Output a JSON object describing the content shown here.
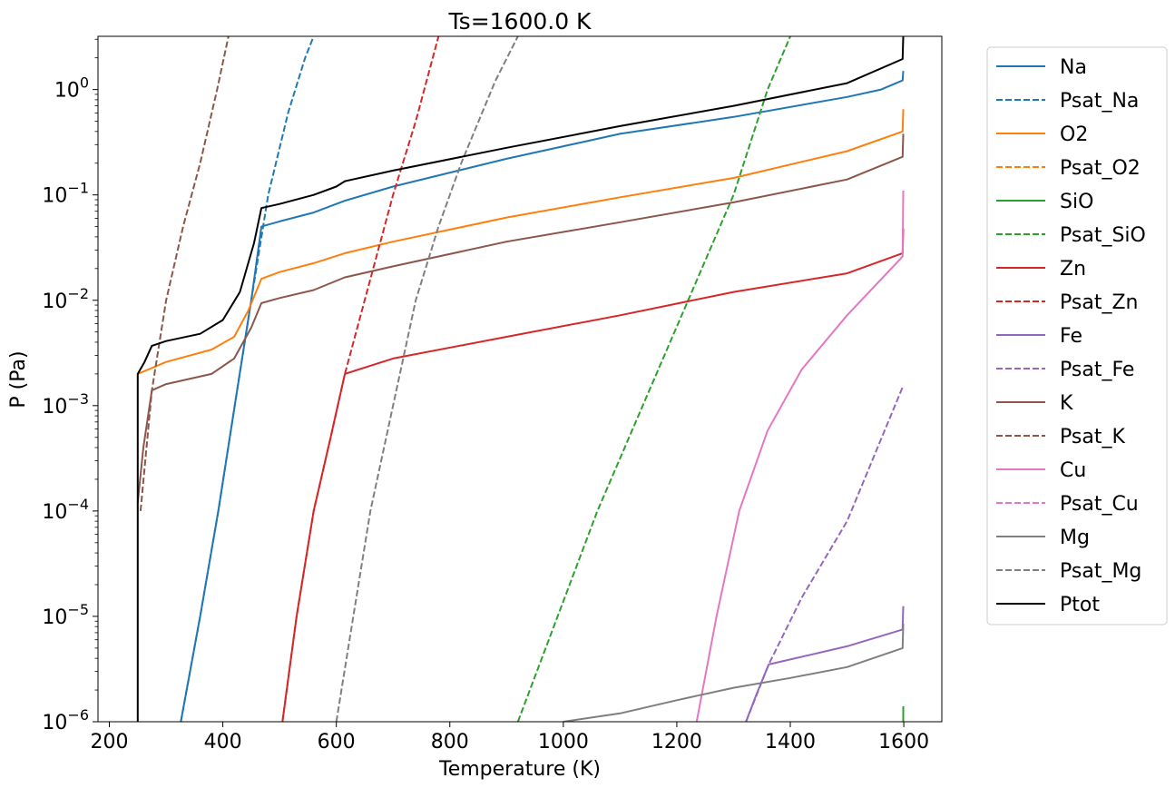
{
  "chart_data": {
    "type": "line",
    "title": "Ts=1600.0 K",
    "xlabel": "Temperature (K)",
    "ylabel": "P (Pa)",
    "xlim": [
      180,
      1667
    ],
    "ylim": [
      1e-06,
      3.2
    ],
    "yscale": "log",
    "grid": false,
    "legend_position": "outside right",
    "x_ticks": [
      200,
      400,
      600,
      800,
      1000,
      1200,
      1400,
      1600
    ],
    "y_ticks": [
      {
        "value": 1e-06,
        "base": "10",
        "exp": "−6"
      },
      {
        "value": 1e-05,
        "base": "10",
        "exp": "−5"
      },
      {
        "value": 0.0001,
        "base": "10",
        "exp": "−4"
      },
      {
        "value": 0.001,
        "base": "10",
        "exp": "−3"
      },
      {
        "value": 0.01,
        "base": "10",
        "exp": "−2"
      },
      {
        "value": 0.1,
        "base": "10",
        "exp": "−1"
      },
      {
        "value": 1,
        "base": "10",
        "exp": "0"
      }
    ],
    "series": [
      {
        "name": "Na",
        "color": "#1f77b4",
        "dashed": false,
        "points": [
          [
            326,
            1e-06
          ],
          [
            360,
            1e-05
          ],
          [
            392,
            0.0001
          ],
          [
            421,
            0.001
          ],
          [
            450,
            0.01
          ],
          [
            468,
            0.05
          ],
          [
            500,
            0.056
          ],
          [
            560,
            0.068
          ],
          [
            615,
            0.088
          ],
          [
            700,
            0.12
          ],
          [
            900,
            0.22
          ],
          [
            1100,
            0.38
          ],
          [
            1300,
            0.55
          ],
          [
            1500,
            0.85
          ],
          [
            1560,
            1.0
          ],
          [
            1598,
            1.22
          ],
          [
            1599,
            1.5
          ]
        ]
      },
      {
        "name": "Psat_Na",
        "color": "#1f77b4",
        "dashed": true,
        "points": [
          [
            326,
            1e-06
          ],
          [
            360,
            1e-05
          ],
          [
            392,
            0.0001
          ],
          [
            421,
            0.001
          ],
          [
            450,
            0.01
          ],
          [
            480,
            0.1
          ],
          [
            515,
            0.6
          ],
          [
            545,
            2.0
          ],
          [
            560,
            3.2
          ]
        ]
      },
      {
        "name": "O2",
        "color": "#ff7f0e",
        "dashed": false,
        "points": [
          [
            250,
            0.002
          ],
          [
            300,
            0.0026
          ],
          [
            380,
            0.0034
          ],
          [
            420,
            0.0045
          ],
          [
            445,
            0.008
          ],
          [
            468,
            0.016
          ],
          [
            500,
            0.0185
          ],
          [
            560,
            0.0225
          ],
          [
            615,
            0.028
          ],
          [
            700,
            0.036
          ],
          [
            900,
            0.061
          ],
          [
            1100,
            0.095
          ],
          [
            1300,
            0.145
          ],
          [
            1500,
            0.26
          ],
          [
            1598,
            0.4
          ],
          [
            1599,
            0.65
          ]
        ]
      },
      {
        "name": "Psat_O2",
        "color": "#ff7f0e",
        "dashed": true,
        "points": []
      },
      {
        "name": "SiO",
        "color": "#2ca02c",
        "dashed": false,
        "points": [
          [
            1599,
            1e-06
          ],
          [
            1599,
            1.4e-06
          ]
        ]
      },
      {
        "name": "Psat_SiO",
        "color": "#2ca02c",
        "dashed": true,
        "points": [
          [
            920,
            1e-06
          ],
          [
            990,
            1e-05
          ],
          [
            1060,
            0.0001
          ],
          [
            1140,
            0.001
          ],
          [
            1220,
            0.01
          ],
          [
            1300,
            0.1
          ],
          [
            1360,
            1.0
          ],
          [
            1400,
            3.2
          ]
        ]
      },
      {
        "name": "Zn",
        "color": "#d62728",
        "dashed": false,
        "points": [
          [
            505,
            1e-06
          ],
          [
            530,
            1e-05
          ],
          [
            560,
            0.0001
          ],
          [
            590,
            0.0005
          ],
          [
            615,
            0.002
          ],
          [
            700,
            0.0028
          ],
          [
            900,
            0.0045
          ],
          [
            1100,
            0.0072
          ],
          [
            1300,
            0.012
          ],
          [
            1500,
            0.018
          ],
          [
            1598,
            0.028
          ],
          [
            1599,
            0.048
          ]
        ]
      },
      {
        "name": "Psat_Zn",
        "color": "#d62728",
        "dashed": true,
        "points": [
          [
            505,
            1e-06
          ],
          [
            530,
            1e-05
          ],
          [
            560,
            0.0001
          ],
          [
            590,
            0.0005
          ],
          [
            615,
            0.002
          ],
          [
            650,
            0.01
          ],
          [
            700,
            0.1
          ],
          [
            740,
            0.5
          ],
          [
            780,
            3.2
          ]
        ]
      },
      {
        "name": "Fe",
        "color": "#9467bd",
        "dashed": false,
        "points": [
          [
            1322,
            1e-06
          ],
          [
            1340,
            1.8e-06
          ],
          [
            1362,
            3.5e-06
          ],
          [
            1400,
            3.9e-06
          ],
          [
            1500,
            5.2e-06
          ],
          [
            1598,
            7.5e-06
          ],
          [
            1599,
            1.25e-05
          ]
        ]
      },
      {
        "name": "Psat_Fe",
        "color": "#9467bd",
        "dashed": true,
        "points": [
          [
            1322,
            1e-06
          ],
          [
            1362,
            3.5e-06
          ],
          [
            1420,
            1.5e-05
          ],
          [
            1500,
            8e-05
          ],
          [
            1598,
            0.0015
          ]
        ]
      },
      {
        "name": "K",
        "color": "#8c564b",
        "dashed": false,
        "points": [
          [
            250,
            0.00012
          ],
          [
            260,
            0.0004
          ],
          [
            275,
            0.0014
          ],
          [
            300,
            0.0016
          ],
          [
            380,
            0.002
          ],
          [
            420,
            0.0028
          ],
          [
            450,
            0.0055
          ],
          [
            468,
            0.0094
          ],
          [
            500,
            0.0105
          ],
          [
            560,
            0.0125
          ],
          [
            615,
            0.0165
          ],
          [
            700,
            0.021
          ],
          [
            900,
            0.036
          ],
          [
            1100,
            0.055
          ],
          [
            1300,
            0.085
          ],
          [
            1500,
            0.14
          ],
          [
            1598,
            0.23
          ],
          [
            1599,
            0.38
          ]
        ]
      },
      {
        "name": "Psat_K",
        "color": "#8c564b",
        "dashed": true,
        "points": [
          [
            255,
            0.0001
          ],
          [
            275,
            0.0014
          ],
          [
            300,
            0.01
          ],
          [
            330,
            0.05
          ],
          [
            360,
            0.2
          ],
          [
            390,
            1.0
          ],
          [
            410,
            3.2
          ]
        ]
      },
      {
        "name": "Cu",
        "color": "#e377c2",
        "dashed": false,
        "points": [
          [
            1235,
            1e-06
          ],
          [
            1270,
            1e-05
          ],
          [
            1310,
            0.0001
          ],
          [
            1360,
            0.00058
          ],
          [
            1420,
            0.0022
          ],
          [
            1500,
            0.0072
          ],
          [
            1598,
            0.026
          ],
          [
            1599,
            0.11
          ]
        ]
      },
      {
        "name": "Psat_Cu",
        "color": "#e377c2",
        "dashed": true,
        "points": []
      },
      {
        "name": "Mg",
        "color": "#7f7f7f",
        "dashed": false,
        "points": [
          [
            1000,
            1e-06
          ],
          [
            1100,
            1.2e-06
          ],
          [
            1200,
            1.6e-06
          ],
          [
            1300,
            2.1e-06
          ],
          [
            1400,
            2.6e-06
          ],
          [
            1500,
            3.3e-06
          ],
          [
            1598,
            5e-06
          ],
          [
            1599,
            8.5e-06
          ]
        ]
      },
      {
        "name": "Psat_Mg",
        "color": "#7f7f7f",
        "dashed": true,
        "points": [
          [
            600,
            1e-06
          ],
          [
            630,
            1e-05
          ],
          [
            660,
            0.0001
          ],
          [
            700,
            0.001
          ],
          [
            740,
            0.01
          ],
          [
            780,
            0.05
          ],
          [
            820,
            0.2
          ],
          [
            880,
            1.2
          ],
          [
            920,
            3.2
          ]
        ]
      },
      {
        "name": "Ptot",
        "color": "#000000",
        "dashed": false,
        "points": [
          [
            250,
            1e-06
          ],
          [
            250,
            0.002
          ],
          [
            262,
            0.0026
          ],
          [
            275,
            0.0037
          ],
          [
            300,
            0.0041
          ],
          [
            360,
            0.0048
          ],
          [
            400,
            0.0065
          ],
          [
            430,
            0.012
          ],
          [
            455,
            0.035
          ],
          [
            468,
            0.075
          ],
          [
            500,
            0.082
          ],
          [
            560,
            0.1
          ],
          [
            600,
            0.12
          ],
          [
            615,
            0.135
          ],
          [
            700,
            0.17
          ],
          [
            900,
            0.28
          ],
          [
            1100,
            0.45
          ],
          [
            1300,
            0.7
          ],
          [
            1500,
            1.15
          ],
          [
            1598,
            1.95
          ],
          [
            1599,
            3.2
          ]
        ]
      }
    ]
  }
}
